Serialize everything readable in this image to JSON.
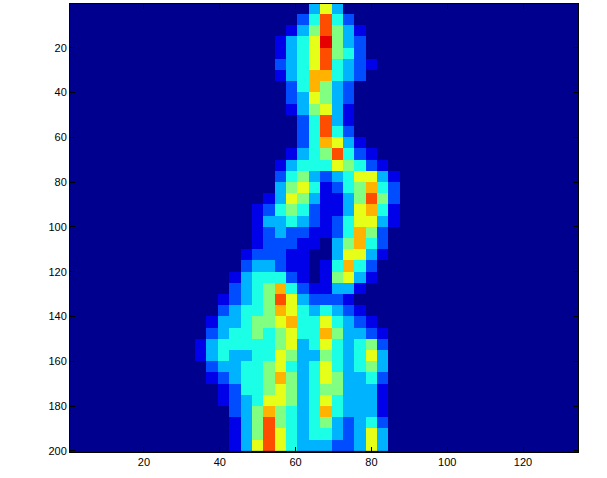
{
  "chart_data": {
    "type": "heatmap",
    "xlim": [
      0.5,
      134.5
    ],
    "ylim": [
      0.5,
      200.5
    ],
    "xticks": [
      20,
      40,
      60,
      80,
      100,
      120
    ],
    "yticks": [
      20,
      40,
      60,
      80,
      100,
      120,
      140,
      160,
      180,
      200
    ],
    "zlim": [
      0,
      10
    ],
    "x": [
      35,
      38,
      41,
      44,
      47,
      50,
      53,
      56,
      59,
      62,
      65,
      68,
      71,
      74,
      77,
      80,
      83,
      86,
      89
    ],
    "y": [
      2.5,
      7.5,
      12.5,
      17.5,
      22.5,
      27.5,
      32.5,
      37.5,
      42.5,
      47.5,
      52.5,
      57.5,
      62.5,
      67.5,
      72.5,
      77.5,
      82.5,
      87.5,
      92.5,
      97.5,
      102.5,
      107.5,
      112.5,
      117.5,
      122.5,
      127.5,
      132.5,
      137.5,
      142.5,
      147.5,
      152.5,
      157.5,
      162.5,
      167.5,
      172.5,
      177.5,
      182.5,
      187.5,
      192.5,
      197.5
    ],
    "z": [
      [
        0,
        0,
        0,
        0,
        0,
        0,
        0,
        0,
        0,
        0,
        3,
        6,
        3,
        0,
        0,
        0,
        0,
        0,
        0
      ],
      [
        0,
        0,
        0,
        0,
        0,
        0,
        0,
        0,
        0,
        2,
        4,
        8,
        4,
        2,
        0,
        0,
        0,
        0,
        0
      ],
      [
        0,
        0,
        0,
        0,
        0,
        0,
        0,
        0,
        1,
        3,
        5,
        8,
        5,
        3,
        1,
        0,
        0,
        0,
        0
      ],
      [
        0,
        0,
        0,
        0,
        0,
        0,
        0,
        1,
        3,
        4,
        6,
        9,
        5,
        3,
        2,
        0,
        0,
        0,
        0
      ],
      [
        0,
        0,
        0,
        0,
        0,
        0,
        0,
        1,
        3,
        4,
        6,
        8,
        5,
        4,
        2,
        0,
        0,
        0,
        0
      ],
      [
        0,
        0,
        0,
        0,
        0,
        0,
        0,
        2,
        3,
        4,
        6,
        8,
        4,
        3,
        2,
        1,
        0,
        0,
        0
      ],
      [
        0,
        0,
        0,
        0,
        0,
        0,
        0,
        1,
        3,
        4,
        7,
        7,
        4,
        3,
        2,
        0,
        0,
        0,
        0
      ],
      [
        0,
        0,
        0,
        0,
        0,
        0,
        0,
        0,
        2,
        4,
        7,
        5,
        3,
        2,
        0,
        0,
        0,
        0,
        0
      ],
      [
        0,
        0,
        0,
        0,
        0,
        0,
        0,
        0,
        2,
        3,
        6,
        5,
        3,
        2,
        0,
        0,
        0,
        0,
        0
      ],
      [
        0,
        0,
        0,
        0,
        0,
        0,
        0,
        0,
        1,
        3,
        5,
        6,
        3,
        1,
        0,
        0,
        0,
        0,
        0
      ],
      [
        0,
        0,
        0,
        0,
        0,
        0,
        0,
        0,
        0,
        2,
        4,
        8,
        3,
        1,
        0,
        0,
        0,
        0,
        0
      ],
      [
        0,
        0,
        0,
        0,
        0,
        0,
        0,
        0,
        0,
        2,
        4,
        8,
        4,
        2,
        0,
        0,
        0,
        0,
        0
      ],
      [
        0,
        0,
        0,
        0,
        0,
        0,
        0,
        0,
        0,
        2,
        4,
        7,
        6,
        3,
        1,
        0,
        0,
        0,
        0
      ],
      [
        0,
        0,
        0,
        0,
        0,
        0,
        0,
        0,
        1,
        3,
        4,
        5,
        8,
        4,
        2,
        1,
        0,
        0,
        0
      ],
      [
        0,
        0,
        0,
        0,
        0,
        0,
        0,
        1,
        3,
        4,
        4,
        4,
        6,
        5,
        4,
        2,
        1,
        0,
        0
      ],
      [
        0,
        0,
        0,
        0,
        0,
        0,
        0,
        2,
        4,
        5,
        3,
        2,
        3,
        4,
        6,
        6,
        3,
        1,
        0
      ],
      [
        0,
        0,
        0,
        0,
        0,
        0,
        0,
        3,
        5,
        6,
        4,
        1,
        2,
        4,
        5,
        7,
        4,
        2,
        0
      ],
      [
        0,
        0,
        0,
        0,
        0,
        0,
        1,
        3,
        6,
        5,
        3,
        1,
        1,
        3,
        5,
        8,
        5,
        2,
        0
      ],
      [
        0,
        0,
        0,
        0,
        0,
        1,
        2,
        4,
        5,
        4,
        2,
        1,
        1,
        3,
        6,
        7,
        4,
        1,
        0
      ],
      [
        0,
        0,
        0,
        0,
        0,
        1,
        3,
        3,
        4,
        3,
        2,
        1,
        2,
        4,
        6,
        6,
        3,
        1,
        0
      ],
      [
        0,
        0,
        0,
        0,
        0,
        1,
        2,
        3,
        2,
        2,
        1,
        1,
        2,
        4,
        7,
        5,
        2,
        0,
        0
      ],
      [
        0,
        0,
        0,
        0,
        0,
        1,
        2,
        2,
        2,
        1,
        1,
        0,
        3,
        5,
        7,
        4,
        2,
        0,
        0
      ],
      [
        0,
        0,
        0,
        0,
        1,
        2,
        2,
        2,
        1,
        1,
        0,
        0,
        3,
        6,
        6,
        3,
        1,
        0,
        0
      ],
      [
        0,
        0,
        0,
        0,
        2,
        3,
        3,
        2,
        1,
        1,
        0,
        1,
        4,
        7,
        4,
        2,
        0,
        0,
        0
      ],
      [
        0,
        0,
        0,
        1,
        3,
        4,
        4,
        4,
        2,
        1,
        0,
        1,
        5,
        6,
        3,
        1,
        0,
        0,
        0
      ],
      [
        0,
        0,
        0,
        2,
        3,
        4,
        5,
        7,
        4,
        2,
        1,
        1,
        3,
        3,
        1,
        0,
        0,
        0,
        0
      ],
      [
        0,
        0,
        1,
        2,
        3,
        4,
        5,
        8,
        6,
        3,
        2,
        2,
        2,
        1,
        0,
        0,
        0,
        0,
        0
      ],
      [
        0,
        0,
        2,
        3,
        4,
        4,
        5,
        7,
        6,
        4,
        3,
        4,
        3,
        2,
        1,
        0,
        0,
        0,
        0
      ],
      [
        0,
        1,
        3,
        3,
        4,
        5,
        5,
        6,
        7,
        4,
        4,
        6,
        4,
        3,
        2,
        1,
        0,
        0,
        0
      ],
      [
        0,
        2,
        3,
        4,
        4,
        5,
        4,
        5,
        6,
        4,
        4,
        7,
        5,
        3,
        3,
        2,
        1,
        0,
        0
      ],
      [
        1,
        3,
        4,
        4,
        4,
        4,
        4,
        5,
        6,
        3,
        4,
        6,
        4,
        3,
        4,
        5,
        2,
        0,
        0
      ],
      [
        1,
        3,
        4,
        3,
        3,
        4,
        4,
        6,
        5,
        3,
        3,
        5,
        4,
        3,
        4,
        6,
        3,
        0,
        0
      ],
      [
        0,
        2,
        3,
        3,
        4,
        4,
        5,
        6,
        4,
        3,
        4,
        6,
        4,
        3,
        4,
        5,
        3,
        0,
        0
      ],
      [
        0,
        1,
        2,
        3,
        4,
        4,
        5,
        7,
        5,
        3,
        4,
        6,
        5,
        3,
        3,
        4,
        2,
        0,
        0
      ],
      [
        0,
        0,
        1,
        2,
        4,
        4,
        5,
        6,
        5,
        3,
        4,
        5,
        5,
        3,
        3,
        3,
        1,
        0,
        0
      ],
      [
        0,
        0,
        1,
        2,
        3,
        4,
        6,
        6,
        5,
        3,
        4,
        6,
        4,
        3,
        3,
        3,
        1,
        0,
        0
      ],
      [
        0,
        0,
        0,
        2,
        3,
        5,
        7,
        5,
        4,
        3,
        4,
        7,
        4,
        3,
        3,
        3,
        1,
        0,
        0
      ],
      [
        0,
        0,
        0,
        1,
        3,
        5,
        8,
        5,
        4,
        3,
        4,
        5,
        3,
        2,
        3,
        4,
        2,
        0,
        0
      ],
      [
        0,
        0,
        0,
        1,
        3,
        5,
        8,
        6,
        4,
        3,
        4,
        4,
        3,
        2,
        3,
        6,
        3,
        0,
        0
      ],
      [
        0,
        0,
        0,
        1,
        3,
        6,
        8,
        6,
        4,
        3,
        3,
        3,
        2,
        2,
        3,
        6,
        3,
        0,
        0
      ]
    ]
  }
}
